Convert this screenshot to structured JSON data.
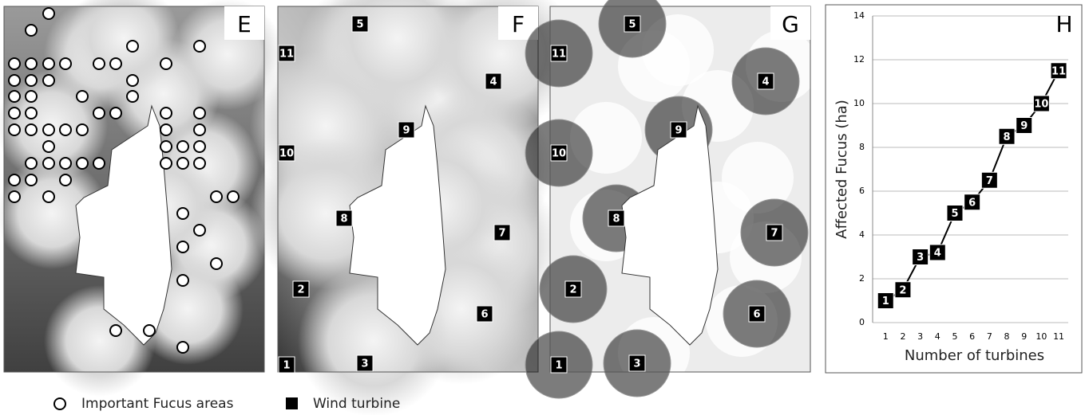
{
  "panels": [
    {
      "label": "E"
    },
    {
      "label": "F",
      "turbines": [
        "5",
        "11",
        "4",
        "9",
        "10",
        "8",
        "7",
        "2",
        "6",
        "1",
        "3"
      ]
    },
    {
      "label": "G",
      "turbines": [
        "5",
        "11",
        "4",
        "9",
        "10",
        "8",
        "7",
        "2",
        "6",
        "1",
        "3"
      ]
    }
  ],
  "legend": [
    "Important Fucus areas",
    "Wind turbine"
  ],
  "chart_data": {
    "type": "line",
    "title": "H",
    "x_label": "Number of turbines",
    "y_label": "Affected Fucus (ha)",
    "x": [
      1,
      2,
      3,
      4,
      5,
      6,
      7,
      8,
      9,
      10,
      11
    ],
    "values": [
      1,
      1.5,
      3,
      3.2,
      5,
      5.5,
      6.5,
      8.5,
      9,
      10,
      11.5
    ],
    "color": "#000000",
    "xlim": [
      0.25,
      11.55
    ],
    "xticks": [
      1,
      2,
      3,
      4,
      5,
      6,
      7,
      8,
      9,
      10,
      11
    ],
    "ylim": [
      0,
      14
    ],
    "yticks": [
      0,
      2,
      4,
      6,
      8,
      10,
      12,
      14
    ],
    "grid": true
  }
}
